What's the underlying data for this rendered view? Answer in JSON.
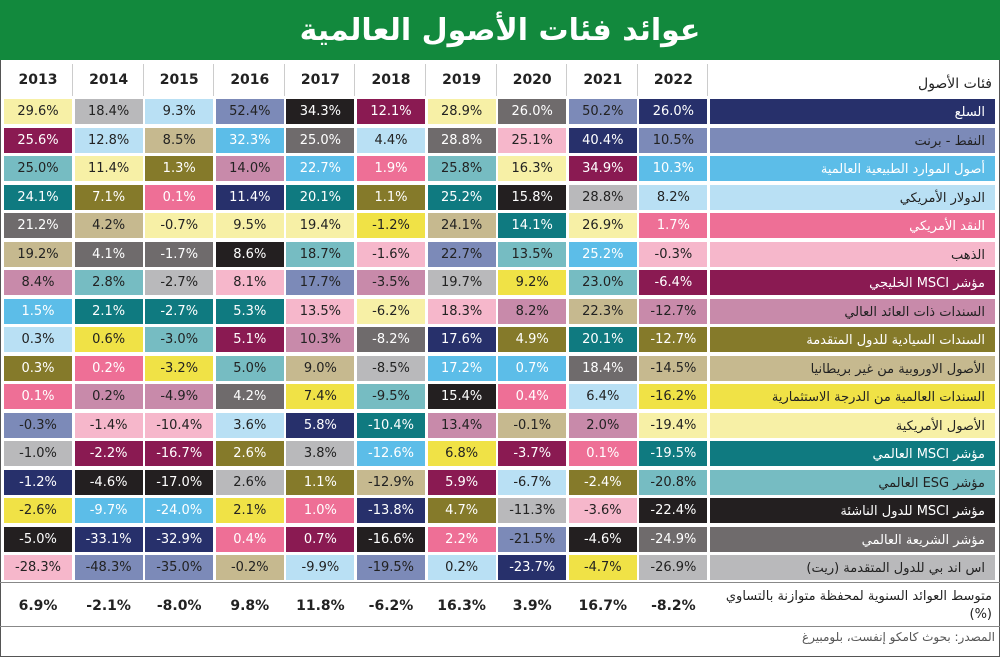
{
  "title": "عوائد فئات الأصول العالمية",
  "chart_data": {
    "type": "table",
    "title": "عوائد فئات الأصول العالمية",
    "header_label": "فئات الأصول",
    "years": [
      "2013",
      "2014",
      "2015",
      "2016",
      "2017",
      "2018",
      "2019",
      "2020",
      "2021",
      "2022"
    ],
    "assets": [
      {
        "name": "السلع",
        "color": "#27306b",
        "text": "#ffffff"
      },
      {
        "name": "النفط - برنت",
        "color": "#7c8ab8",
        "text": "#222222"
      },
      {
        "name": "أصول الموارد الطبيعية العالمية",
        "color": "#5cbde8",
        "text": "#ffffff"
      },
      {
        "name": "الدولار الأمريكي",
        "color": "#b9e0f4",
        "text": "#222222"
      },
      {
        "name": "النقد الأمريكي",
        "color": "#ee6f96",
        "text": "#ffffff"
      },
      {
        "name": "الذهب",
        "color": "#f6b7cb",
        "text": "#222222"
      },
      {
        "name": "مؤشر MSCI الخليجي",
        "color": "#8a1a52",
        "text": "#ffffff"
      },
      {
        "name": "السندات ذات العائد العالي",
        "color": "#c88aaa",
        "text": "#222222"
      },
      {
        "name": "السندات السيادية للدول المتقدمة",
        "color": "#857a2a",
        "text": "#ffffff"
      },
      {
        "name": "الأصول الاوروبية من غير بريطانيا",
        "color": "#c6b98f",
        "text": "#222222"
      },
      {
        "name": "السندات العالمية من الدرجة الاستثمارية",
        "color": "#f0e246",
        "text": "#222222"
      },
      {
        "name": "الأصول الأمريكية",
        "color": "#f7f0a6",
        "text": "#222222"
      },
      {
        "name": "مؤشر MSCI العالمي",
        "color": "#0f7a80",
        "text": "#ffffff"
      },
      {
        "name": "مؤشر ESG العالمي",
        "color": "#76bcc2",
        "text": "#222222"
      },
      {
        "name": "مؤشر MSCI للدول الناشئة",
        "color": "#231f20",
        "text": "#ffffff"
      },
      {
        "name": "مؤشر الشريعة العالمي",
        "color": "#6f6b6c",
        "text": "#ffffff"
      },
      {
        "name": "اس اند بي للدول المتقدمة (ريت)",
        "color": "#b9b9bb",
        "text": "#222222"
      }
    ],
    "ranked_columns": {
      "2013": [
        [
          "29.6%",
          11
        ],
        [
          "25.6%",
          6
        ],
        [
          "25.0%",
          13
        ],
        [
          "24.1%",
          12
        ],
        [
          "21.2%",
          15
        ],
        [
          "19.2%",
          9
        ],
        [
          "8.4%",
          7
        ],
        [
          "1.5%",
          2
        ],
        [
          "0.3%",
          3
        ],
        [
          "0.3%",
          8
        ],
        [
          "0.1%",
          4
        ],
        [
          "-0.3%",
          1
        ],
        [
          "-1.0%",
          16
        ],
        [
          "-1.2%",
          0
        ],
        [
          "-2.6%",
          10
        ],
        [
          "-5.0%",
          14
        ],
        [
          "-28.3%",
          5
        ]
      ],
      "2014": [
        [
          "18.4%",
          16
        ],
        [
          "12.8%",
          3
        ],
        [
          "11.4%",
          11
        ],
        [
          "7.1%",
          8
        ],
        [
          "4.2%",
          9
        ],
        [
          "4.1%",
          15
        ],
        [
          "2.8%",
          13
        ],
        [
          "2.1%",
          12
        ],
        [
          "0.6%",
          10
        ],
        [
          "0.2%",
          4
        ],
        [
          "0.2%",
          7
        ],
        [
          "-1.4%",
          5
        ],
        [
          "-2.2%",
          6
        ],
        [
          "-4.6%",
          14
        ],
        [
          "-9.7%",
          2
        ],
        [
          "-33.1%",
          0
        ],
        [
          "-48.3%",
          1
        ]
      ],
      "2015": [
        [
          "9.3%",
          3
        ],
        [
          "8.5%",
          9
        ],
        [
          "1.3%",
          8
        ],
        [
          "0.1%",
          4
        ],
        [
          "-0.7%",
          11
        ],
        [
          "-1.7%",
          15
        ],
        [
          "-2.7%",
          16
        ],
        [
          "-2.7%",
          12
        ],
        [
          "-3.0%",
          13
        ],
        [
          "-3.2%",
          10
        ],
        [
          "-4.9%",
          7
        ],
        [
          "-10.4%",
          5
        ],
        [
          "-16.7%",
          6
        ],
        [
          "-17.0%",
          14
        ],
        [
          "-24.0%",
          2
        ],
        [
          "-32.9%",
          0
        ],
        [
          "-35.0%",
          1
        ]
      ],
      "2016": [
        [
          "52.4%",
          1
        ],
        [
          "32.3%",
          2
        ],
        [
          "14.0%",
          7
        ],
        [
          "11.4%",
          0
        ],
        [
          "9.5%",
          11
        ],
        [
          "8.6%",
          14
        ],
        [
          "8.1%",
          5
        ],
        [
          "5.3%",
          12
        ],
        [
          "5.1%",
          6
        ],
        [
          "5.0%",
          13
        ],
        [
          "4.2%",
          15
        ],
        [
          "3.6%",
          3
        ],
        [
          "2.6%",
          8
        ],
        [
          "2.6%",
          16
        ],
        [
          "2.1%",
          10
        ],
        [
          "0.4%",
          4
        ],
        [
          "-0.2%",
          9
        ]
      ],
      "2017": [
        [
          "34.3%",
          14
        ],
        [
          "25.0%",
          15
        ],
        [
          "22.7%",
          2
        ],
        [
          "20.1%",
          12
        ],
        [
          "19.4%",
          11
        ],
        [
          "18.7%",
          13
        ],
        [
          "17.7%",
          1
        ],
        [
          "13.5%",
          5
        ],
        [
          "10.3%",
          7
        ],
        [
          "9.0%",
          9
        ],
        [
          "7.4%",
          10
        ],
        [
          "5.8%",
          0
        ],
        [
          "3.8%",
          16
        ],
        [
          "1.1%",
          8
        ],
        [
          "1.0%",
          4
        ],
        [
          "0.7%",
          6
        ],
        [
          "-9.9%",
          3
        ]
      ],
      "2018": [
        [
          "12.1%",
          6
        ],
        [
          "4.4%",
          3
        ],
        [
          "1.9%",
          4
        ],
        [
          "1.1%",
          8
        ],
        [
          "-1.2%",
          10
        ],
        [
          "-1.6%",
          5
        ],
        [
          "-3.5%",
          7
        ],
        [
          "-6.2%",
          11
        ],
        [
          "-8.2%",
          15
        ],
        [
          "-8.5%",
          16
        ],
        [
          "-9.5%",
          13
        ],
        [
          "-10.4%",
          12
        ],
        [
          "-12.6%",
          2
        ],
        [
          "-12.9%",
          9
        ],
        [
          "-13.8%",
          0
        ],
        [
          "-16.6%",
          14
        ],
        [
          "-19.5%",
          1
        ]
      ],
      "2019": [
        [
          "28.9%",
          11
        ],
        [
          "28.8%",
          15
        ],
        [
          "25.8%",
          13
        ],
        [
          "25.2%",
          12
        ],
        [
          "24.1%",
          9
        ],
        [
          "22.7%",
          1
        ],
        [
          "19.7%",
          16
        ],
        [
          "18.3%",
          5
        ],
        [
          "17.6%",
          0
        ],
        [
          "17.2%",
          2
        ],
        [
          "15.4%",
          14
        ],
        [
          "13.4%",
          7
        ],
        [
          "6.8%",
          10
        ],
        [
          "5.9%",
          6
        ],
        [
          "4.7%",
          8
        ],
        [
          "2.2%",
          4
        ],
        [
          "0.2%",
          3
        ]
      ],
      "2020": [
        [
          "26.0%",
          15
        ],
        [
          "25.1%",
          5
        ],
        [
          "16.3%",
          11
        ],
        [
          "15.8%",
          14
        ],
        [
          "14.1%",
          12
        ],
        [
          "13.5%",
          13
        ],
        [
          "9.2%",
          10
        ],
        [
          "8.2%",
          7
        ],
        [
          "4.9%",
          8
        ],
        [
          "0.7%",
          2
        ],
        [
          "0.4%",
          4
        ],
        [
          "-0.1%",
          9
        ],
        [
          "-3.7%",
          6
        ],
        [
          "-6.7%",
          3
        ],
        [
          "-11.3%",
          16
        ],
        [
          "-21.5%",
          1
        ],
        [
          "-23.7%",
          0
        ]
      ],
      "2021": [
        [
          "50.2%",
          1
        ],
        [
          "40.4%",
          0
        ],
        [
          "34.9%",
          6
        ],
        [
          "28.8%",
          16
        ],
        [
          "26.9%",
          11
        ],
        [
          "25.2%",
          2
        ],
        [
          "23.0%",
          13
        ],
        [
          "22.3%",
          9
        ],
        [
          "20.1%",
          12
        ],
        [
          "18.4%",
          15
        ],
        [
          "6.4%",
          3
        ],
        [
          "2.0%",
          7
        ],
        [
          "0.1%",
          4
        ],
        [
          "-2.4%",
          8
        ],
        [
          "-3.6%",
          5
        ],
        [
          "-4.6%",
          14
        ],
        [
          "-4.7%",
          10
        ]
      ],
      "2022": [
        [
          "26.0%",
          0
        ],
        [
          "10.5%",
          1
        ],
        [
          "10.3%",
          2
        ],
        [
          "8.2%",
          3
        ],
        [
          "1.7%",
          4
        ],
        [
          "-0.3%",
          5
        ],
        [
          "-6.4%",
          6
        ],
        [
          "-12.7%",
          7
        ],
        [
          "-12.7%",
          8
        ],
        [
          "-14.5%",
          9
        ],
        [
          "-16.2%",
          10
        ],
        [
          "-19.4%",
          11
        ],
        [
          "-19.5%",
          12
        ],
        [
          "-20.8%",
          13
        ],
        [
          "-22.4%",
          14
        ],
        [
          "-24.9%",
          15
        ],
        [
          "-26.9%",
          16
        ]
      ]
    },
    "average_label": "متوسط العوائد السنوية لمحفظة متوازنة بالتساوي (%)",
    "averages": [
      "6.9%",
      "-2.1%",
      "-8.0%",
      "9.8%",
      "11.8%",
      "-6.2%",
      "16.3%",
      "3.9%",
      "16.7%",
      "-8.2%"
    ]
  },
  "source": "المصدر: بحوث كامكو إنفست، بلومبيرغ"
}
